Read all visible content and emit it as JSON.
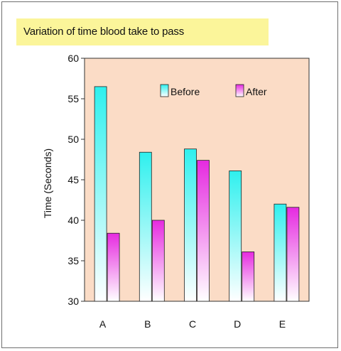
{
  "chart_data": {
    "type": "bar",
    "title": "Variation of time blood take to pass",
    "xlabel": "",
    "ylabel": "Time (Seconds)",
    "ylim": [
      30,
      60
    ],
    "yticks": [
      30,
      35,
      40,
      45,
      50,
      55,
      60
    ],
    "categories": [
      "A",
      "B",
      "C",
      "D",
      "E"
    ],
    "series": [
      {
        "name": "Before",
        "values": [
          56.5,
          48.4,
          48.8,
          46.1,
          42.0
        ]
      },
      {
        "name": "After",
        "values": [
          38.4,
          40.0,
          47.4,
          36.1,
          41.6
        ]
      }
    ],
    "legend_position": "top-right",
    "grid": false,
    "colors": {
      "plot_background": "#fbdcc6",
      "before_top": "#2ff0ee",
      "after_top": "#e62ae0",
      "bar_bottom": "#ffffff",
      "title_background": "#fbf59a"
    }
  }
}
